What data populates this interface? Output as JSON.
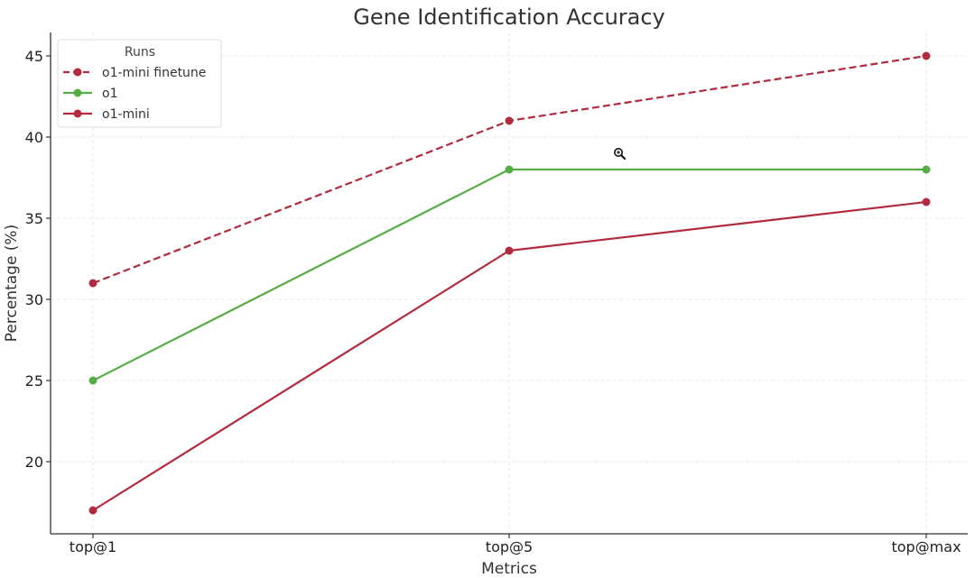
{
  "chart_data": {
    "type": "line",
    "title": "Gene Identification Accuracy",
    "xlabel": "Metrics",
    "ylabel": "Percentage (%)",
    "categories": [
      "top@1",
      "top@5",
      "top@max"
    ],
    "ylim": [
      16,
      46.5
    ],
    "yticks": [
      20,
      25,
      30,
      35,
      40,
      45
    ],
    "grid": true,
    "legend": {
      "title": "Runs",
      "placement": "upper-left"
    },
    "series": [
      {
        "name": "o1-mini finetune",
        "values": [
          31,
          41,
          45
        ],
        "color": "#b22a3e",
        "style": "dashed",
        "marker": "circle"
      },
      {
        "name": "o1",
        "values": [
          25,
          38,
          38
        ],
        "color": "#56ad46",
        "style": "solid",
        "marker": "circle"
      },
      {
        "name": "o1-mini",
        "values": [
          17,
          33,
          36
        ],
        "color": "#b22a3e",
        "style": "solid",
        "marker": "circle"
      }
    ]
  },
  "cursor_icon": "zoom-in-icon"
}
